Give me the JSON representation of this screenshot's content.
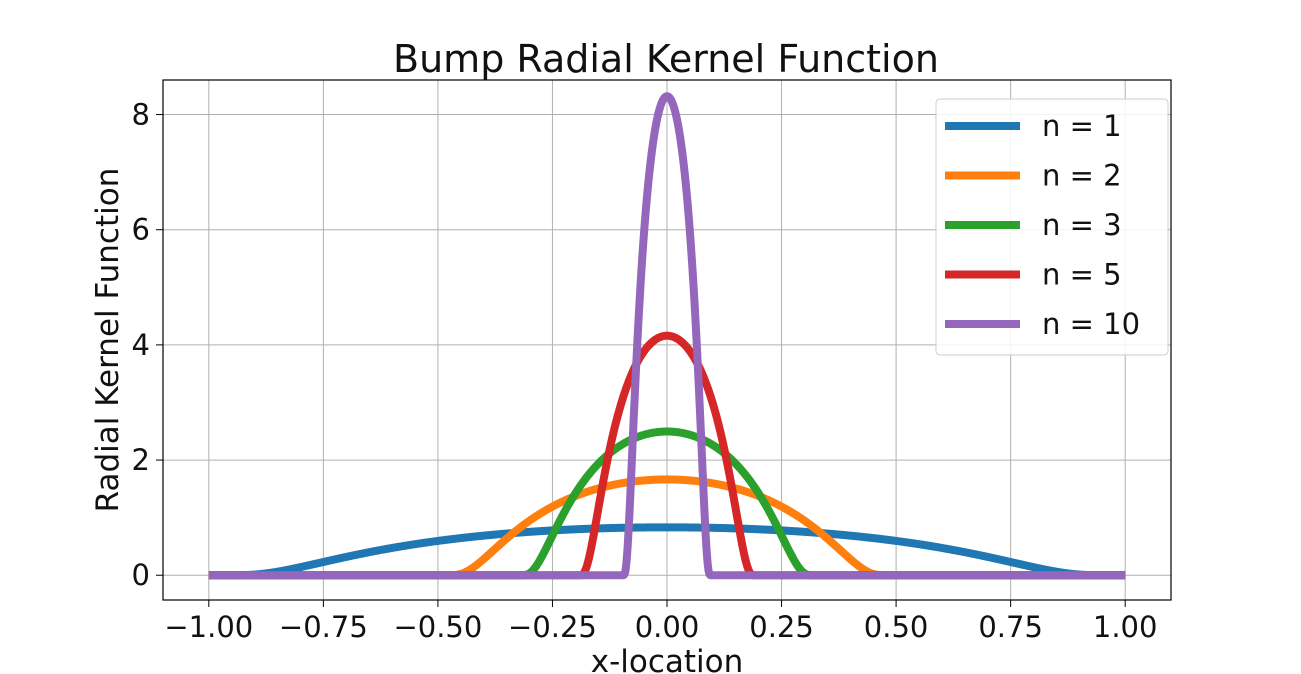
{
  "chart_data": {
    "type": "line",
    "title": "Bump Radial Kernel Function",
    "xlabel": "x-location",
    "ylabel": "Radial Kernel Function",
    "xlim": [
      -1.1,
      1.1
    ],
    "ylim": [
      -0.43,
      8.6
    ],
    "xticks": [
      -1.0,
      -0.75,
      -0.5,
      -0.25,
      0.0,
      0.25,
      0.5,
      0.75,
      1.0
    ],
    "xtick_labels": [
      "−1.00",
      "−0.75",
      "−0.50",
      "−0.25",
      "0.00",
      "0.25",
      "0.50",
      "0.75",
      "1.00"
    ],
    "yticks": [
      0,
      2,
      4,
      6,
      8
    ],
    "ytick_labels": [
      "0",
      "2",
      "4",
      "6",
      "8"
    ],
    "grid": true,
    "legend_position": "top-right",
    "x_range": [
      -1.0,
      1.0
    ],
    "series": [
      {
        "name": "n = 1",
        "n": 1,
        "color": "#1f77b4",
        "peak": 0.8319
      },
      {
        "name": "n = 2",
        "n": 2,
        "color": "#ff7f0e",
        "peak": 1.6637
      },
      {
        "name": "n = 3",
        "n": 3,
        "color": "#2ca02c",
        "peak": 2.4956
      },
      {
        "name": "n = 5",
        "n": 5,
        "color": "#d62728",
        "peak": 4.1593
      },
      {
        "name": "n = 10",
        "n": 10,
        "color": "#9467bd",
        "peak": 8.3186
      }
    ]
  }
}
